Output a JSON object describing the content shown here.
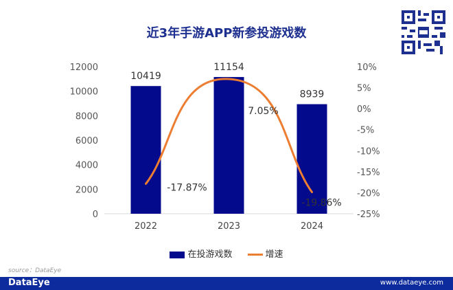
{
  "chart_data": {
    "type": "bar+line",
    "title": "近3年手游APP新参投游戏数",
    "categories": [
      "2022",
      "2023",
      "2024"
    ],
    "series": [
      {
        "name": "在投游戏数",
        "type": "bar",
        "axis": "left",
        "values": [
          10419,
          11154,
          8939
        ],
        "color": "#030a8c",
        "labels": [
          "10419",
          "11154",
          "8939"
        ]
      },
      {
        "name": "增速",
        "type": "line",
        "axis": "right",
        "smooth": true,
        "values": [
          -17.87,
          7.05,
          -19.86
        ],
        "color": "#ed7d31",
        "labels": [
          "-17.87%",
          "7.05%",
          "-19.86%"
        ]
      }
    ],
    "ylim": [
      0,
      12000
    ],
    "yticks": [
      "0",
      "2000",
      "4000",
      "6000",
      "8000",
      "10000",
      "12000"
    ],
    "y2lim": [
      -25,
      10
    ],
    "y2ticks": [
      "-25%",
      "-20%",
      "-15%",
      "-10%",
      "-5%",
      "0%",
      "5%",
      "10%"
    ],
    "grid": false,
    "legend": "bottom"
  },
  "watermark": "DataEye",
  "source": "source：DataEye",
  "footer": {
    "logo": "DataEye",
    "url": "www.dataeye.com"
  }
}
